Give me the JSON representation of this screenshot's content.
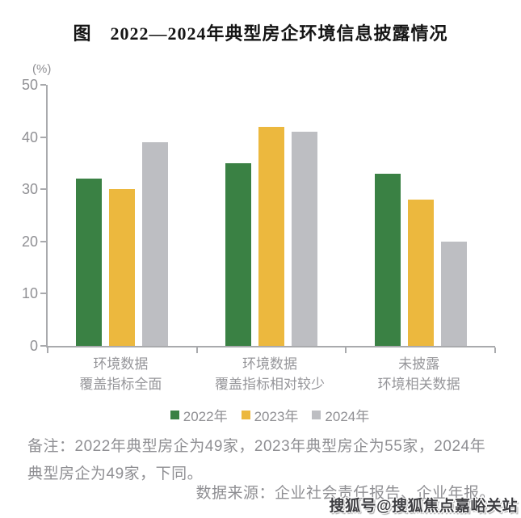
{
  "title": "图　2022—2024年典型房企环境信息披露情况",
  "chart_data": {
    "type": "bar",
    "title": "图 2022—2024年典型房企环境信息披露情况",
    "unit_label": "(%)",
    "xlabel": "",
    "ylabel": "(%)",
    "ylim": [
      0,
      50
    ],
    "yticks": [
      0,
      10,
      20,
      30,
      40,
      50
    ],
    "grid": false,
    "legend_position": "bottom",
    "categories": [
      {
        "line1": "环境数据",
        "line2": "覆盖指标全面"
      },
      {
        "line1": "环境数据",
        "line2": "覆盖指标相对较少"
      },
      {
        "line1": "未披露",
        "line2": "环境相关数据"
      }
    ],
    "series": [
      {
        "name": "2022年",
        "color": "#3a8144",
        "values": [
          32,
          35,
          33
        ]
      },
      {
        "name": "2023年",
        "color": "#ecb83e",
        "values": [
          30,
          42,
          28
        ]
      },
      {
        "name": "2024年",
        "color": "#bdbec2",
        "values": [
          39,
          41,
          20
        ]
      }
    ]
  },
  "note": "备注：2022年典型房企为49家，2023年典型房企为55家，2024年典型房企为49家，下同。",
  "source": "数据来源：企业社会责任报告、企业年报。",
  "watermark": "搜狐号@搜狐焦点嘉峪关站",
  "colors": {
    "axis": "#a9aaad",
    "gray_text": "#8f8f93",
    "title_text": "#151515"
  }
}
